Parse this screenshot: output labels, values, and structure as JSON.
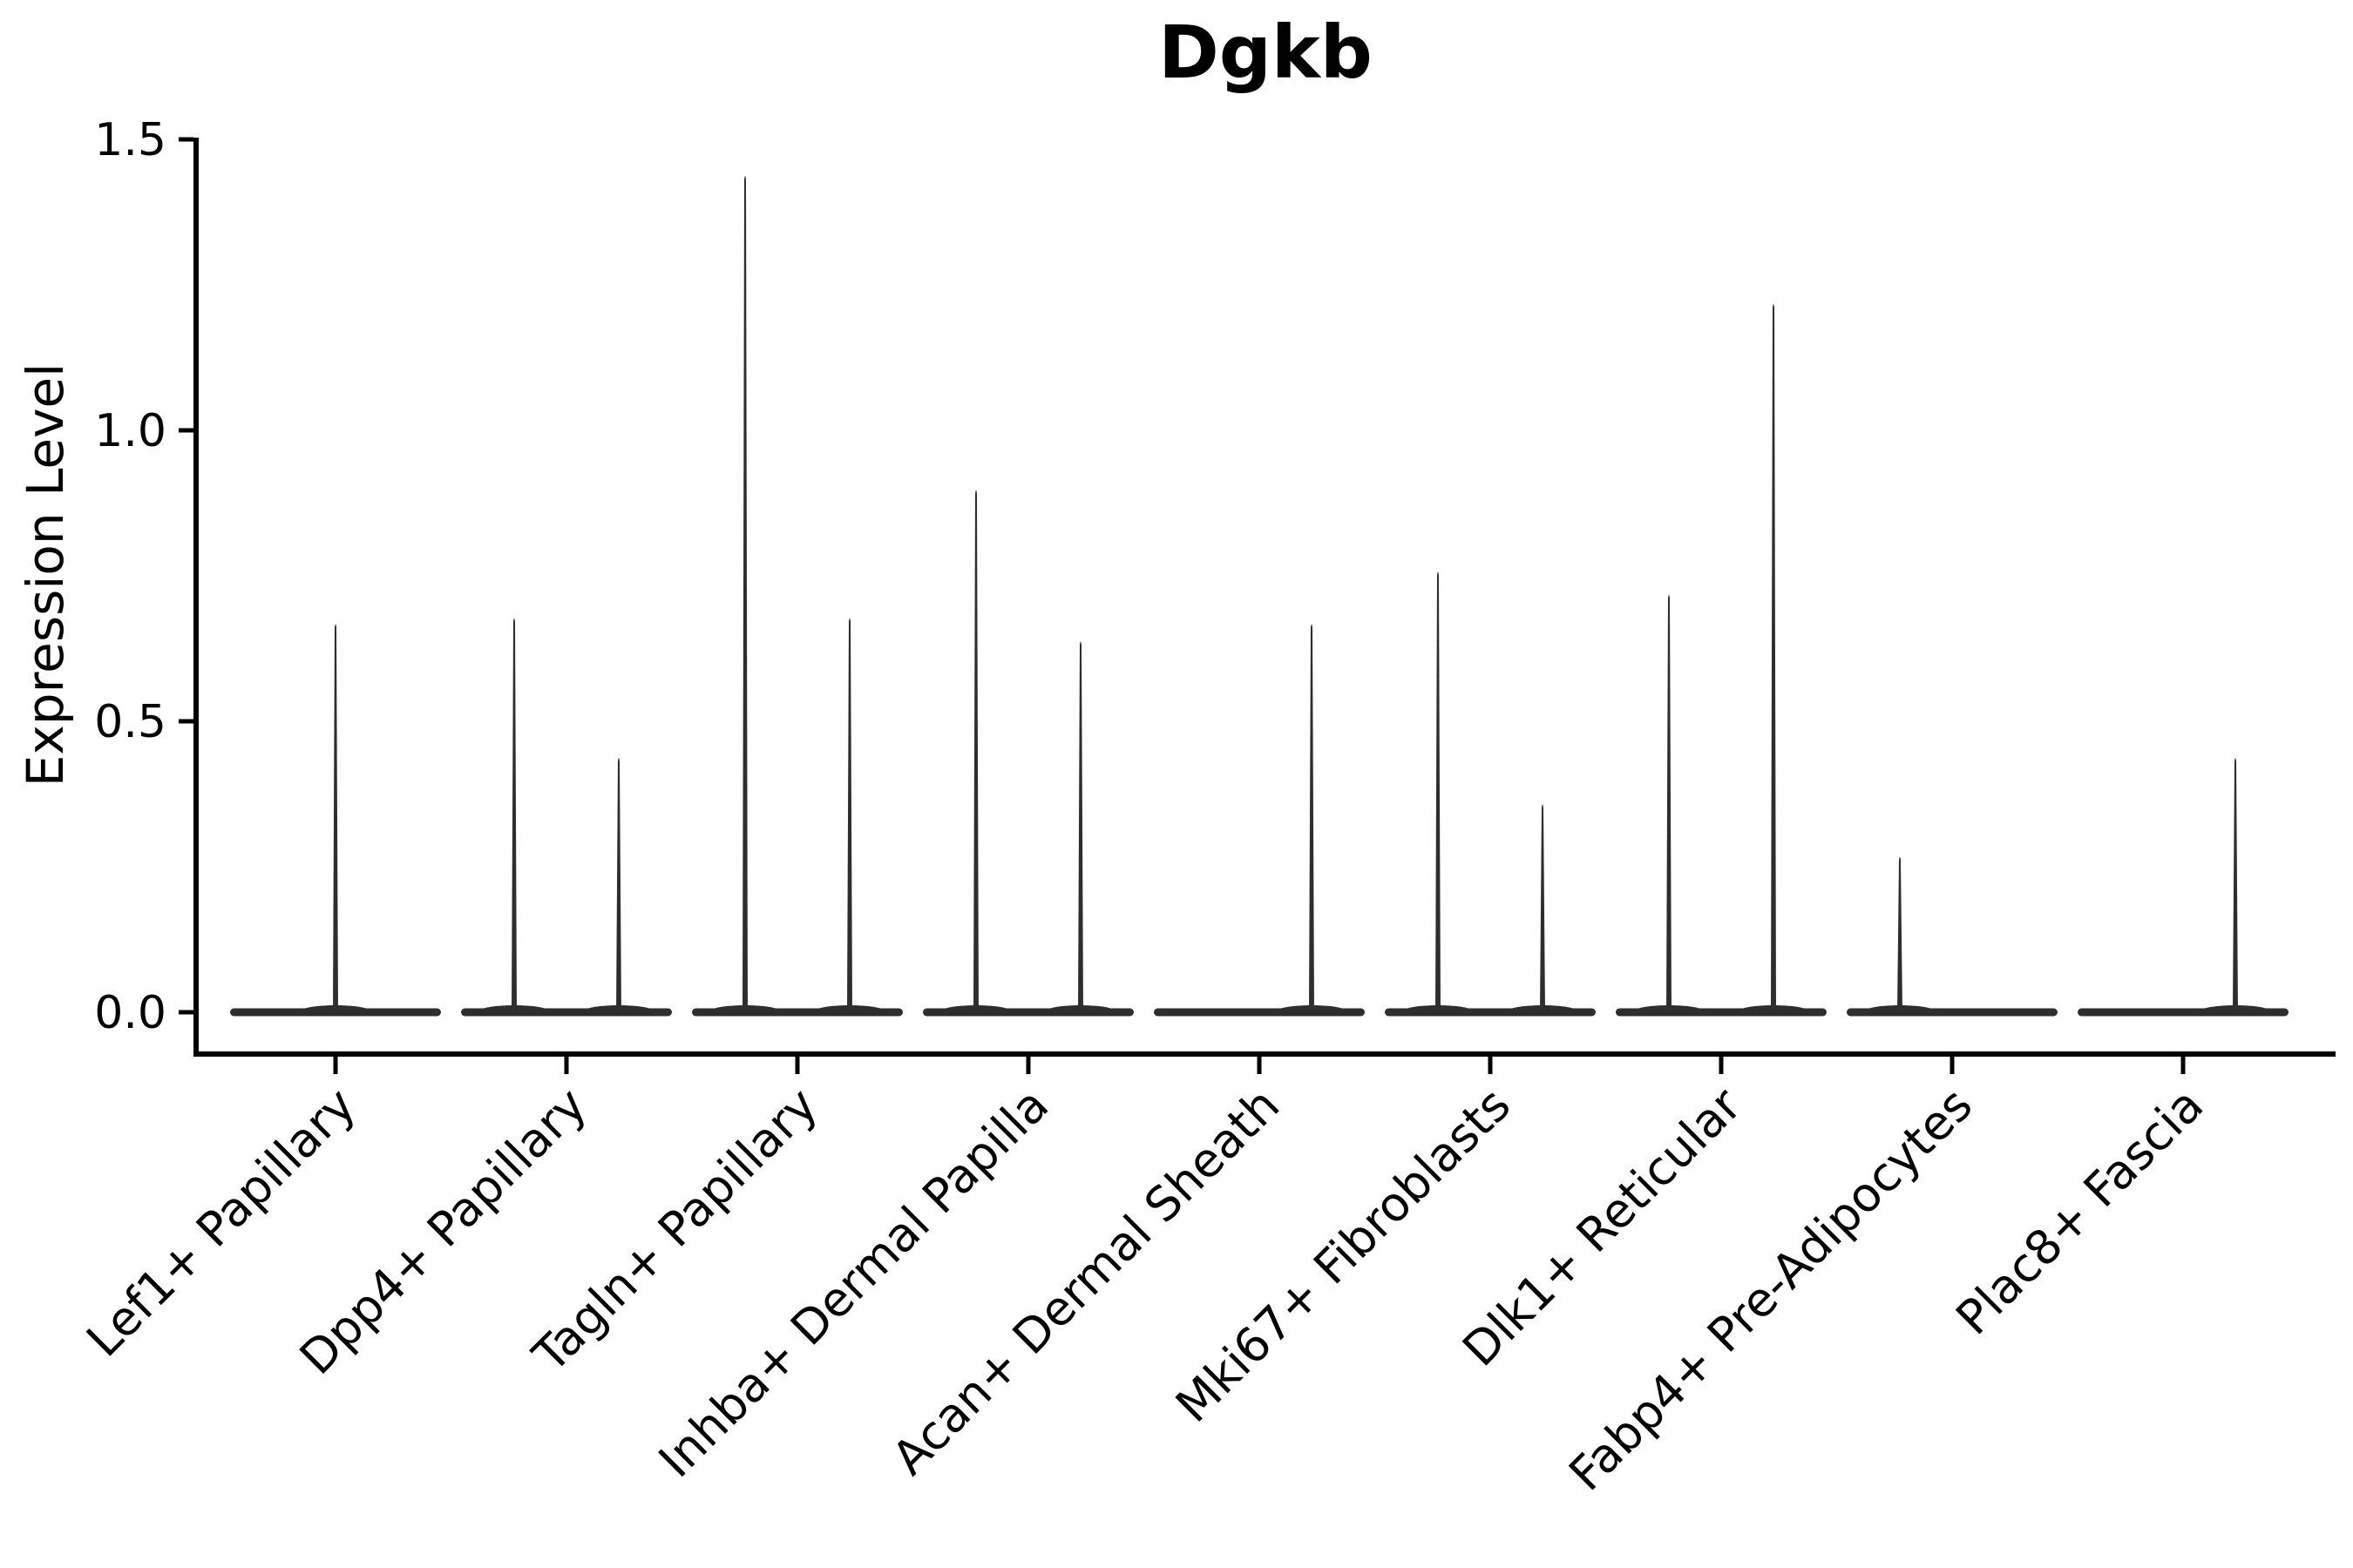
{
  "chart_data": {
    "type": "violin",
    "title": "Dgkb",
    "ylabel": "Expression Level",
    "xlabel": "",
    "ylim": [
      0,
      1.5
    ],
    "ytick_labels": [
      "0.0",
      "0.5",
      "1.0",
      "1.5"
    ],
    "ytick_values": [
      0,
      0.5,
      1.0,
      1.5
    ],
    "grid": false,
    "legend": "none",
    "x_tick_rotation": 45,
    "violin_color": "#2e2e2e",
    "axis_color": "#000000",
    "text_color": "#000000",
    "categories": [
      "Lef1+ Papillary",
      "Dpp4+ Papillary",
      "Tagln+ Papillary",
      "Inhba+ Dermal Papilla",
      "Acan+ Dermal Sheath",
      "Mki67+ Fibroblasts",
      "Dlk1+ Reticular",
      "Fabp4+ Pre-Adipocytes",
      "Plac8+ Fascia"
    ],
    "violins": [
      {
        "category": "Lef1+ Papillary",
        "spikes": [
          {
            "pos": "center",
            "max": 0.67
          }
        ]
      },
      {
        "category": "Dpp4+ Papillary",
        "spikes": [
          {
            "pos": "left",
            "max": 0.68
          },
          {
            "pos": "right",
            "max": 0.44
          }
        ]
      },
      {
        "category": "Tagln+ Papillary",
        "spikes": [
          {
            "pos": "left",
            "max": 1.44
          },
          {
            "pos": "right",
            "max": 0.68
          }
        ]
      },
      {
        "category": "Inhba+ Dermal Papilla",
        "spikes": [
          {
            "pos": "left",
            "max": 0.9
          },
          {
            "pos": "right",
            "max": 0.64
          }
        ]
      },
      {
        "category": "Acan+ Dermal Sheath",
        "spikes": [
          {
            "pos": "right",
            "max": 0.67
          }
        ]
      },
      {
        "category": "Mki67+ Fibroblasts",
        "spikes": [
          {
            "pos": "left",
            "max": 0.76
          },
          {
            "pos": "right",
            "max": 0.36
          }
        ]
      },
      {
        "category": "Dlk1+ Reticular",
        "spikes": [
          {
            "pos": "left",
            "max": 0.72
          },
          {
            "pos": "right",
            "max": 1.22
          }
        ]
      },
      {
        "category": "Fabp4+ Pre-Adipocytes",
        "spikes": [
          {
            "pos": "left",
            "max": 0.27
          }
        ]
      },
      {
        "category": "Plac8+ Fascia",
        "spikes": [
          {
            "pos": "right",
            "max": 0.44
          }
        ]
      }
    ]
  }
}
